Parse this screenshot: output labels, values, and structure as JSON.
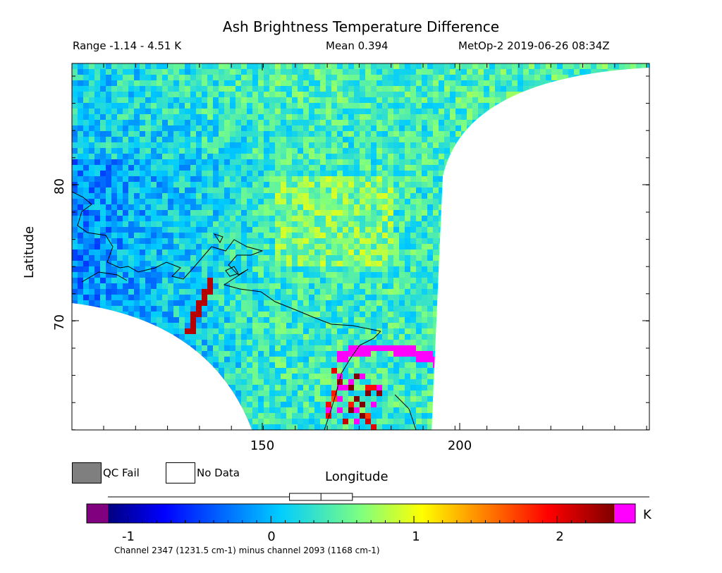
{
  "header": {
    "title": "Ash Brightness Temperature Difference",
    "range_text": "Range -1.14 - 4.51 K",
    "mean_text": "Mean 0.394",
    "source_text": "MetOp-2 2019-06-26 08:34Z"
  },
  "axes": {
    "ylabel": "Latitude",
    "xlabel": "Longitude",
    "yticks": [
      "80",
      "70"
    ],
    "xticks": [
      "150",
      "200"
    ]
  },
  "legend": {
    "qc_fail_label": "QC Fail",
    "no_data_label": "No Data",
    "qc_fail_color": "#7f7f7f",
    "no_data_color": "#ffffff"
  },
  "colorbar": {
    "unit": "K",
    "ticks": [
      "-1",
      "0",
      "1",
      "2"
    ],
    "tick_values": [
      -1,
      0,
      1,
      2
    ],
    "vmin": -1.14,
    "vmax": 2.4,
    "under_color": "#800080",
    "over_color": "#ff00ff",
    "footnote": "Channel 2347 (1231.5 cm-1) minus channel 2093 (1168 cm-1)"
  },
  "chart_data": {
    "type": "heatmap",
    "title": "Ash Brightness Temperature Difference",
    "xlabel": "Longitude",
    "ylabel": "Latitude",
    "xlim": [
      104,
      246
    ],
    "ylim": [
      61.8,
      89
    ],
    "unit": "K",
    "range": [
      -1.14,
      4.51
    ],
    "mean": 0.394,
    "box_summary": {
      "q1": 0.13,
      "median": 0.35,
      "q3": 0.57
    }
  }
}
